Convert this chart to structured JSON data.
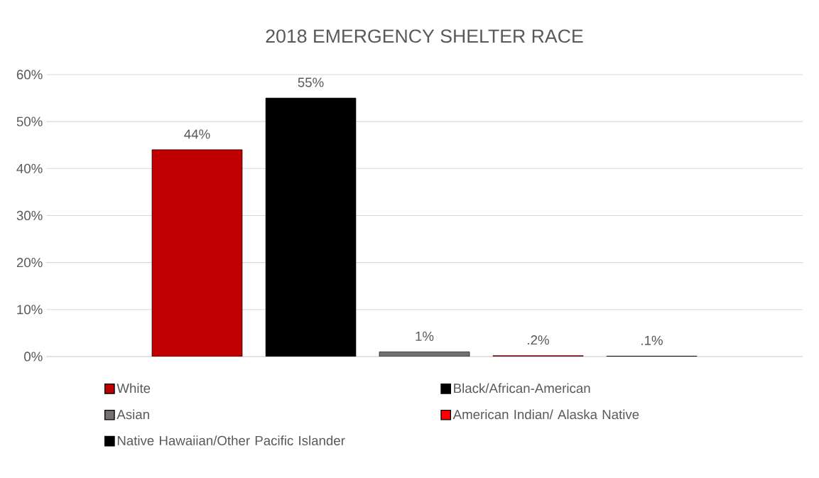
{
  "chart_data": {
    "type": "bar",
    "title": "2018 EMERGENCY SHELTER  RACE",
    "categories": [
      null
    ],
    "series": [
      {
        "name": "White",
        "color": "#c00000",
        "values": [
          44
        ],
        "value_labels": [
          "44%"
        ]
      },
      {
        "name": "Black/African-American",
        "color": "#000000",
        "values": [
          55
        ],
        "value_labels": [
          "55%"
        ]
      },
      {
        "name": "Asian",
        "color": "#767171",
        "values": [
          1
        ],
        "value_labels": [
          "1%"
        ]
      },
      {
        "name": "American Indian/ Alaska Native",
        "color": "#ff0000",
        "values": [
          0.2
        ],
        "value_labels": [
          ".2%"
        ]
      },
      {
        "name": "Native Hawaiian/Other Pacific Islander",
        "color": "#000000",
        "values": [
          0.1
        ],
        "value_labels": [
          ".1%"
        ]
      }
    ],
    "ylim": [
      0,
      60
    ],
    "yticks": [
      {
        "value": 0,
        "label": "0%"
      },
      {
        "value": 10,
        "label": "10%"
      },
      {
        "value": 20,
        "label": "20%"
      },
      {
        "value": 30,
        "label": "30%"
      },
      {
        "value": 40,
        "label": "40%"
      },
      {
        "value": 50,
        "label": "50%"
      },
      {
        "value": 60,
        "label": "60%"
      }
    ],
    "grid": "y",
    "legend": "bottom"
  }
}
